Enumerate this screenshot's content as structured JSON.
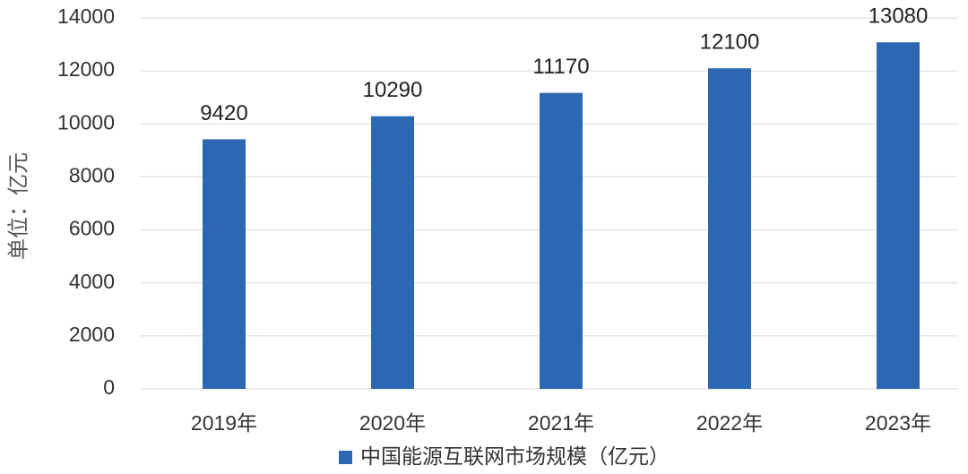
{
  "chart_data": {
    "type": "bar",
    "y_label": "单位：亿元",
    "categories": [
      "2019年",
      "2020年",
      "2021年",
      "2022年",
      "2023年"
    ],
    "series": [
      {
        "name": "中国能源互联网市场规模（亿元）",
        "color": "#2e67b1",
        "values": [
          9420,
          10290,
          11170,
          12100,
          13080
        ]
      }
    ],
    "ylim": [
      0,
      14000
    ],
    "yticks": [
      0,
      2000,
      4000,
      6000,
      8000,
      10000,
      12000,
      14000
    ],
    "grid": true,
    "legend": "bottom"
  }
}
